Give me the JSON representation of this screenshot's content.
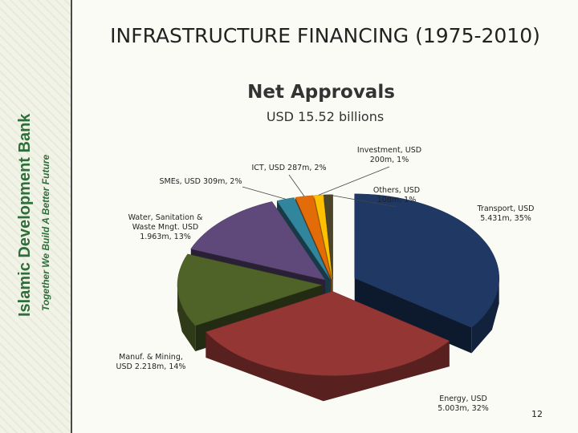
{
  "header": {
    "title": "INFRASTRUCTURE  FINANCING  (1975-2010)",
    "org": "Islamic Development Bank",
    "tagline": "Together We Build A Better Future",
    "page": "12"
  },
  "chart_data": {
    "type": "pie",
    "title": "Net Approvals",
    "subtitle": "USD 15.52 billions",
    "categories": [
      "Transport, USD 5.431m, 35%",
      "Energy, USD 5.003m, 32%",
      "Manuf. & Mining, USD 2.218m, 14%",
      "Water, Sanitation & Waste Mngt. USD 1.963m, 13%",
      "SMEs, USD 309m, 2%",
      "ICT, USD 287m, 2%",
      "Investment, USD 200m, 1%",
      "Others, USD 108m, 1%"
    ],
    "values": [
      35,
      32,
      14,
      13,
      2,
      2,
      1,
      1
    ],
    "colors": [
      "#1f3864",
      "#943634",
      "#4f6228",
      "#5f497a",
      "#31859c",
      "#e36c09",
      "#ffc000",
      "#4a452a"
    ]
  }
}
